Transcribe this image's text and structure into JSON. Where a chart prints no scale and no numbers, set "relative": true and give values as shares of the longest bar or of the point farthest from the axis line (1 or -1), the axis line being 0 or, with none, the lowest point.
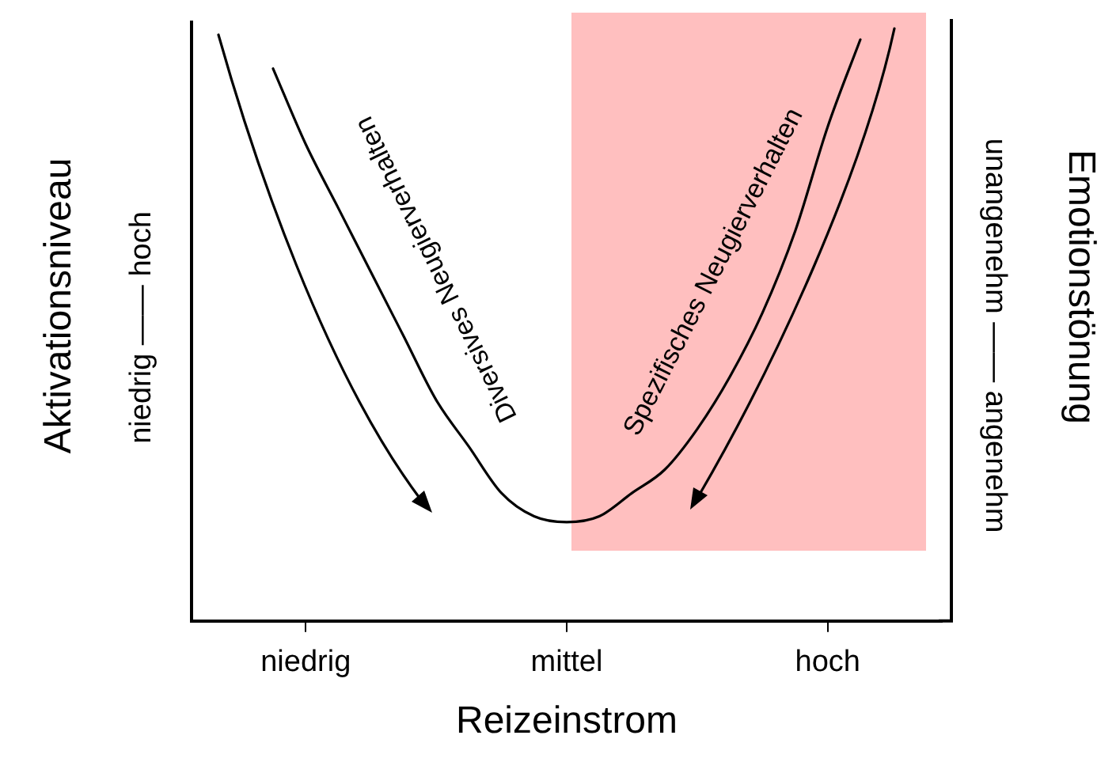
{
  "chart_data": {
    "type": "line",
    "relative": true,
    "xlabel": "Reizeinstrom",
    "ylabel": "Aktivationsniveau",
    "y2label": "Emotionstönung",
    "categories": [
      null,
      null,
      null,
      "niedrig",
      null,
      null,
      null,
      null,
      null,
      null,
      null,
      "mittel",
      null,
      null,
      null,
      null,
      null,
      null,
      null,
      "hoch",
      null,
      null,
      null
    ],
    "series": [
      {
        "color": "#000000",
        "values": [
          null,
          null,
          0.95,
          0.82,
          0.71,
          0.6,
          0.49,
          0.38,
          0.3,
          0.22,
          0.18,
          0.17,
          0.18,
          0.22,
          0.26,
          0.33,
          0.42,
          0.53,
          0.67,
          0.85,
          1.0,
          null,
          null
        ]
      }
    ],
    "annotations": [
      "niedrig —— hoch",
      "unangenehm —— angenehm",
      "Diversives Neugierverhalten",
      "Spezifisches Neugierverhalten"
    ],
    "legend": false,
    "grid": false,
    "marker": "none",
    "line_style": "solid"
  }
}
